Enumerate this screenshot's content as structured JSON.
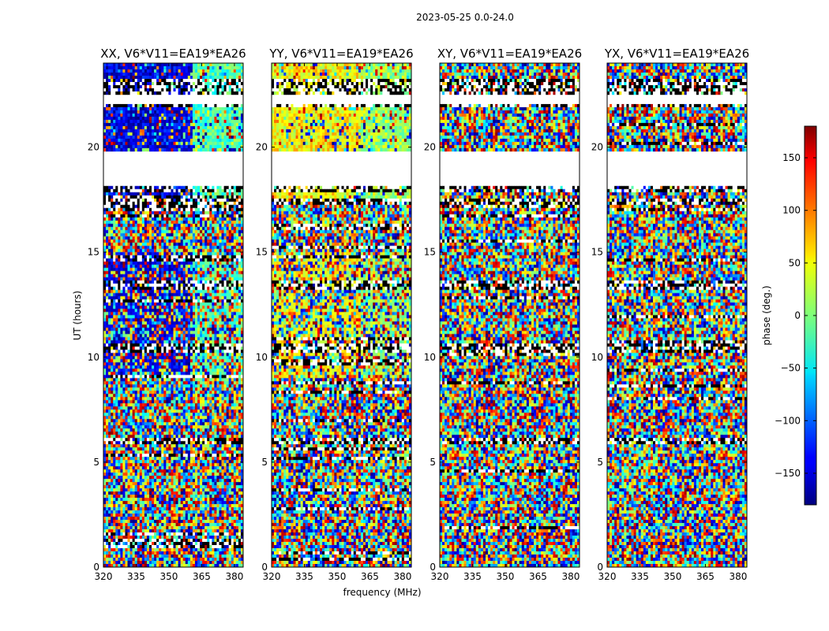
{
  "chart_data": {
    "type": "heatmap",
    "suptitle": "2023-05-25 0.0-24.0",
    "xlabel": "frequency (MHz)",
    "ylabel": "UT (hours)",
    "x_ticks": [
      "320",
      "335",
      "350",
      "365",
      "380"
    ],
    "x_tick_values": [
      320,
      335,
      350,
      365,
      380
    ],
    "xlim": [
      320,
      384
    ],
    "y_ticks": [
      "0",
      "5",
      "10",
      "15",
      "20"
    ],
    "y_tick_values": [
      0,
      5,
      10,
      15,
      20
    ],
    "ylim": [
      0,
      24
    ],
    "panels": [
      {
        "title": "XX, V6*V11=EA19*EA26",
        "dominant_phase_low": -145,
        "dominant_phase_high": -20
      },
      {
        "title": "YY, V6*V11=EA19*EA26",
        "dominant_phase_low": 45,
        "dominant_phase_high": 10
      },
      {
        "title": "XY, V6*V11=EA19*EA26",
        "dominant_phase_low": null,
        "dominant_phase_high": null
      },
      {
        "title": "YX, V6*V11=EA19*EA26",
        "dominant_phase_low": null,
        "dominant_phase_high": null
      }
    ],
    "colorbar": {
      "label": "phase (deg.)",
      "range": [
        -180,
        180
      ],
      "ticks": [
        "150",
        "100",
        "50",
        "0",
        "−50",
        "−100",
        "−150"
      ],
      "tick_values": [
        150,
        100,
        50,
        0,
        -50,
        -100,
        -150
      ],
      "colormap": "jet"
    },
    "flagged_bands_hours": [
      [
        17.9,
        18.1
      ],
      [
        21.9,
        23.3
      ],
      [
        17.3,
        17.6
      ],
      [
        10.2,
        10.6
      ],
      [
        13.2,
        13.6
      ],
      [
        5.8,
        6.2
      ]
    ],
    "blank_rows_hours": [
      [
        18.1,
        19.8
      ],
      [
        22.1,
        22.5
      ]
    ]
  }
}
